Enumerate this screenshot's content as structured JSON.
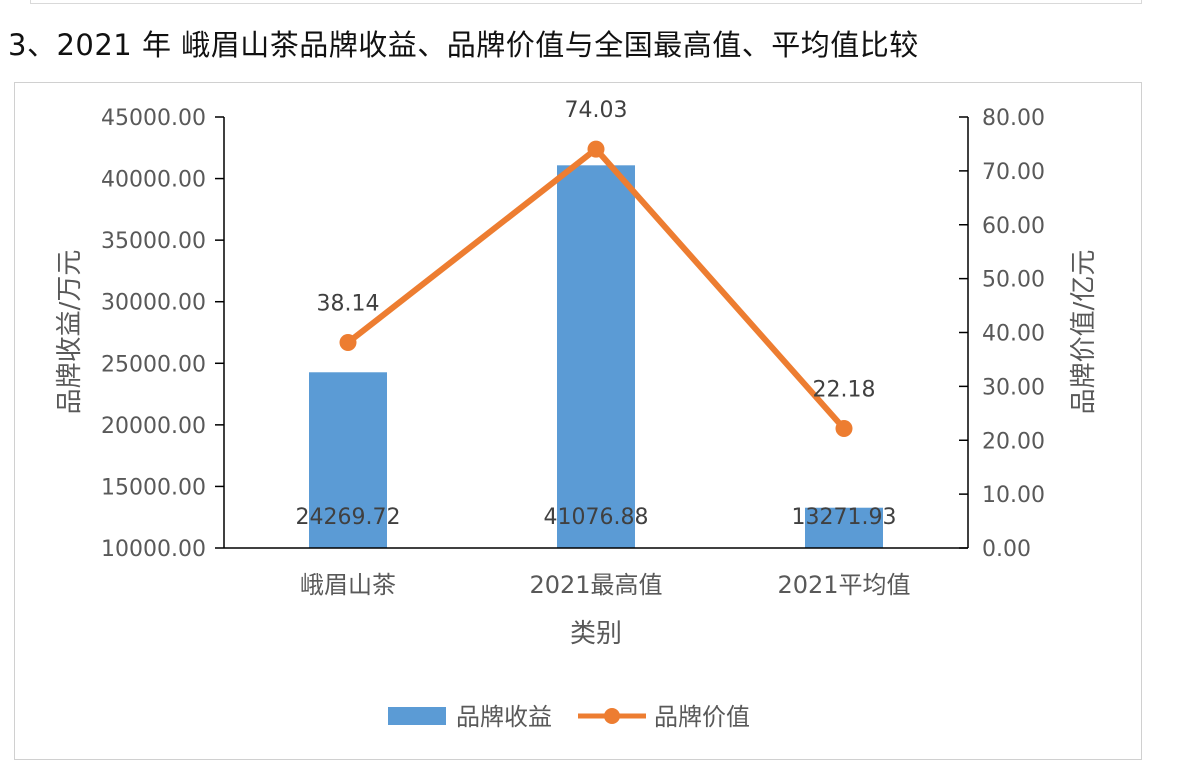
{
  "page": {
    "section_title": "3、2021 年  峨眉山茶品牌收益、品牌价值与全国最高值、平均值比较"
  },
  "chart_data": {
    "type": "bar",
    "categories": [
      "峨眉山茶",
      "2021最高值",
      "2021平均值"
    ],
    "xlabel": "类别",
    "y_left": {
      "label": "品牌收益/万元",
      "range": [
        10000,
        45000
      ],
      "ticks": [
        "10000.00",
        "15000.00",
        "20000.00",
        "25000.00",
        "30000.00",
        "35000.00",
        "40000.00",
        "45000.00"
      ],
      "tick_values": [
        10000,
        15000,
        20000,
        25000,
        30000,
        35000,
        40000,
        45000
      ]
    },
    "y_right": {
      "label": "品牌价值/亿元",
      "range": [
        0,
        80
      ],
      "ticks": [
        "0.00",
        "10.00",
        "20.00",
        "30.00",
        "40.00",
        "50.00",
        "60.00",
        "70.00",
        "80.00"
      ],
      "tick_values": [
        0,
        10,
        20,
        30,
        40,
        50,
        60,
        70,
        80
      ]
    },
    "series": [
      {
        "name": "品牌收益",
        "type": "bar",
        "axis": "left",
        "color": "#5b9bd5",
        "values": [
          24269.72,
          41076.88,
          13271.93
        ],
        "labels": [
          "24269.72",
          "41076.88",
          "13271.93"
        ]
      },
      {
        "name": "品牌价值",
        "type": "line",
        "axis": "right",
        "color": "#ed7d31",
        "values": [
          38.14,
          74.03,
          22.18
        ],
        "labels": [
          "38.14",
          "74.03",
          "22.18"
        ]
      }
    ],
    "legend_position": "bottom",
    "grid": false
  }
}
